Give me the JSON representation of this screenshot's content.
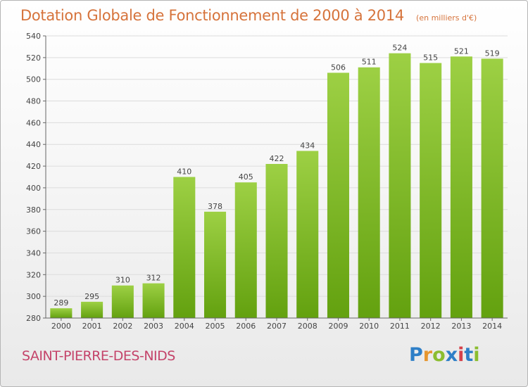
{
  "header": {
    "title": "Dotation Globale de Fonctionnement de 2000 à 2014",
    "unit": "(en milliers d'€)"
  },
  "footer": {
    "location": "SAINT-PIERRE-DES-NIDS",
    "logo": "Proxiti",
    "logo_colors": [
      "#2e7fc7",
      "#e6962f",
      "#8bbd2f",
      "#2e7fc7",
      "#d6414a",
      "#2e7fc7",
      "#8bbd2f"
    ]
  },
  "chart_data": {
    "type": "bar",
    "title": "Dotation Globale de Fonctionnement de 2000 à 2014",
    "xlabel": "",
    "ylabel": "",
    "categories": [
      "2000",
      "2001",
      "2002",
      "2003",
      "2004",
      "2005",
      "2006",
      "2007",
      "2008",
      "2009",
      "2010",
      "2011",
      "2012",
      "2013",
      "2014"
    ],
    "values": [
      289,
      295,
      310,
      312,
      410,
      378,
      405,
      422,
      434,
      506,
      511,
      524,
      515,
      521,
      519
    ],
    "ylim": [
      280,
      540
    ],
    "yticks": [
      280,
      300,
      320,
      340,
      360,
      380,
      400,
      420,
      440,
      460,
      480,
      500,
      520,
      540
    ],
    "grid": true,
    "bar_color_top": "#9dd044",
    "bar_color_bottom": "#63a10f",
    "grid_color": "#dcdcdc"
  }
}
